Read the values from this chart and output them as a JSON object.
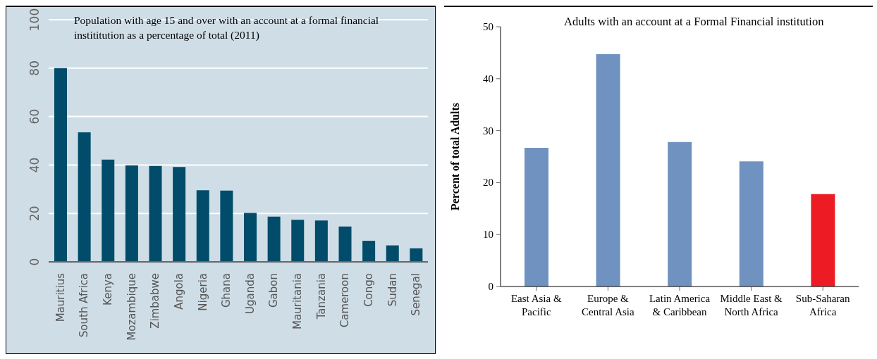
{
  "chart_data": [
    {
      "type": "bar",
      "title": "Population with age 15 and over with an account at a formal financial instititution as a percentage of total (2011)",
      "categories": [
        "Mauritius",
        "South Africa",
        "Kenya",
        "Mozambique",
        "Zimbabwe",
        "Angola",
        "Nigeria",
        "Ghana",
        "Uganda",
        "Gabon",
        "Mauritania",
        "Tanzania",
        "Cameroon",
        "Congo",
        "Sudan",
        "Senegal"
      ],
      "values": [
        80.0,
        53.5,
        42.2,
        39.8,
        39.6,
        39.2,
        29.6,
        29.4,
        20.2,
        18.7,
        17.4,
        17.1,
        14.6,
        8.7,
        6.8,
        5.6
      ],
      "color": "#004c6a",
      "ylim": [
        0,
        100
      ],
      "yticks": [
        0,
        20,
        40,
        60,
        80,
        100
      ],
      "grid": "y"
    },
    {
      "type": "bar",
      "title": "Adults with an account at a Formal Financial institution",
      "ylabel": "Percent of total Adults",
      "categories": [
        "East Asia & Pacific",
        "Europe & Central Asia",
        "Latin America & Caribbean",
        "Middle East & North Africa",
        "Sub-Saharan Africa"
      ],
      "values": [
        26.7,
        44.7,
        27.8,
        24.1,
        17.8
      ],
      "colors": [
        "#7092c0",
        "#7092c0",
        "#7092c0",
        "#7092c0",
        "#ed1c24"
      ],
      "ylim": [
        0,
        50
      ],
      "yticks": [
        0,
        10,
        20,
        30,
        40,
        50
      ],
      "grid": false
    }
  ]
}
